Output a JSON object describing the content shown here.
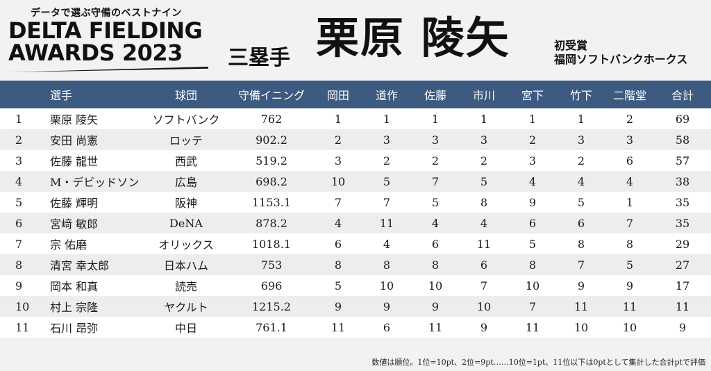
{
  "header": {
    "subtitle": "データで選ぶ守備のベストナイン",
    "award_line1": "DELTA FIELDING",
    "award_line2": "AWARDS 2023",
    "position": "三塁手",
    "player_name": "栗原 陵矢",
    "award_label": "初受賞",
    "team": "福岡ソフトバンクホークス"
  },
  "table": {
    "columns": [
      "",
      "選手",
      "球団",
      "守備イニング",
      "岡田",
      "道作",
      "佐藤",
      "市川",
      "宮下",
      "竹下",
      "二階堂",
      "合計"
    ],
    "rows": [
      [
        "1",
        "栗原 陵矢",
        "ソフトバンク",
        "762",
        "1",
        "1",
        "1",
        "1",
        "1",
        "1",
        "2",
        "69"
      ],
      [
        "2",
        "安田 尚憲",
        "ロッテ",
        "902.2",
        "2",
        "3",
        "3",
        "3",
        "2",
        "3",
        "3",
        "58"
      ],
      [
        "3",
        "佐藤 龍世",
        "西武",
        "519.2",
        "3",
        "2",
        "2",
        "2",
        "3",
        "2",
        "6",
        "57"
      ],
      [
        "4",
        "M・デビッドソン",
        "広島",
        "698.2",
        "10",
        "5",
        "7",
        "5",
        "4",
        "4",
        "4",
        "38"
      ],
      [
        "5",
        "佐藤 輝明",
        "阪神",
        "1153.1",
        "7",
        "7",
        "5",
        "8",
        "9",
        "5",
        "1",
        "35"
      ],
      [
        "6",
        "宮﨑 敏郎",
        "DeNA",
        "878.2",
        "4",
        "11",
        "4",
        "4",
        "6",
        "6",
        "7",
        "35"
      ],
      [
        "7",
        "宗 佑磨",
        "オリックス",
        "1018.1",
        "6",
        "4",
        "6",
        "11",
        "5",
        "8",
        "8",
        "29"
      ],
      [
        "8",
        "清宮 幸太郎",
        "日本ハム",
        "753",
        "8",
        "8",
        "8",
        "6",
        "8",
        "7",
        "5",
        "27"
      ],
      [
        "9",
        "岡本 和真",
        "読売",
        "696",
        "5",
        "10",
        "10",
        "7",
        "10",
        "9",
        "9",
        "17"
      ],
      [
        "10",
        "村上 宗隆",
        "ヤクルト",
        "1215.2",
        "9",
        "9",
        "9",
        "10",
        "7",
        "11",
        "11",
        "11"
      ],
      [
        "11",
        "石川 昂弥",
        "中日",
        "761.1",
        "11",
        "6",
        "11",
        "9",
        "11",
        "10",
        "10",
        "9"
      ]
    ]
  },
  "footnote": "数値は順位。1位=10pt、2位=9pt……10位=1pt、11位以下は0ptとして集計した合計ptで評価",
  "colors": {
    "header_bg": "#3d5a80",
    "row_alt": "#ededed"
  }
}
